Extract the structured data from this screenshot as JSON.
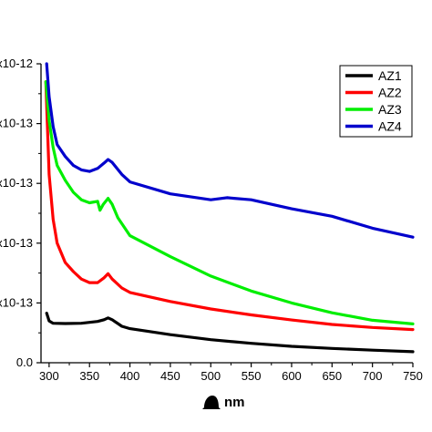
{
  "chart_data": {
    "type": "line",
    "xlabel": "nm",
    "xlim": [
      290,
      750
    ],
    "ylim": [
      0,
      1e-12
    ],
    "x_ticks": [
      300,
      350,
      400,
      450,
      500,
      550,
      600,
      650,
      700,
      750
    ],
    "y_ticks": [
      {
        "value": 0,
        "label": "0.0"
      },
      {
        "value": 2e-13,
        "label": "x10-13"
      },
      {
        "value": 4e-13,
        "label": "x10-13"
      },
      {
        "value": 6e-13,
        "label": "x10-13"
      },
      {
        "value": 8e-13,
        "label": "x10-13"
      },
      {
        "value": 1e-12,
        "label": "x10-12"
      }
    ],
    "legend_position": "top-right",
    "series": [
      {
        "name": "AZ1",
        "color": "#000000",
        "points": [
          [
            297,
            1.66e-13
          ],
          [
            300,
            1.4e-13
          ],
          [
            305,
            1.32e-13
          ],
          [
            320,
            1.31e-13
          ],
          [
            340,
            1.32e-13
          ],
          [
            360,
            1.38e-13
          ],
          [
            368,
            1.44e-13
          ],
          [
            373,
            1.5e-13
          ],
          [
            378,
            1.44e-13
          ],
          [
            390,
            1.22e-13
          ],
          [
            400,
            1.14e-13
          ],
          [
            450,
            9.4e-14
          ],
          [
            500,
            7.7e-14
          ],
          [
            550,
            6.5e-14
          ],
          [
            600,
            5.5e-14
          ],
          [
            650,
            4.8e-14
          ],
          [
            700,
            4.2e-14
          ],
          [
            750,
            3.7e-14
          ]
        ]
      },
      {
        "name": "AZ2",
        "color": "#ff0000",
        "points": [
          [
            296,
            9.4e-13
          ],
          [
            300,
            6.3e-13
          ],
          [
            305,
            4.8e-13
          ],
          [
            310,
            4e-13
          ],
          [
            320,
            3.35e-13
          ],
          [
            330,
            3.05e-13
          ],
          [
            340,
            2.8e-13
          ],
          [
            350,
            2.68e-13
          ],
          [
            360,
            2.68e-13
          ],
          [
            368,
            2.84e-13
          ],
          [
            373,
            2.98e-13
          ],
          [
            378,
            2.8e-13
          ],
          [
            390,
            2.5e-13
          ],
          [
            400,
            2.35e-13
          ],
          [
            450,
            2.05e-13
          ],
          [
            500,
            1.8e-13
          ],
          [
            550,
            1.6e-13
          ],
          [
            600,
            1.43e-13
          ],
          [
            650,
            1.28e-13
          ],
          [
            700,
            1.18e-13
          ],
          [
            750,
            1.11e-13
          ]
        ]
      },
      {
        "name": "AZ3",
        "color": "#00ee00",
        "points": [
          [
            296,
            9.4e-13
          ],
          [
            300,
            8.1e-13
          ],
          [
            305,
            7.2e-13
          ],
          [
            310,
            6.6e-13
          ],
          [
            320,
            6.1e-13
          ],
          [
            330,
            5.7e-13
          ],
          [
            340,
            5.45e-13
          ],
          [
            350,
            5.35e-13
          ],
          [
            360,
            5.4e-13
          ],
          [
            363,
            5.1e-13
          ],
          [
            367,
            5.3e-13
          ],
          [
            373,
            5.5e-13
          ],
          [
            378,
            5.3e-13
          ],
          [
            385,
            4.85e-13
          ],
          [
            400,
            4.25e-13
          ],
          [
            450,
            3.55e-13
          ],
          [
            500,
            2.9e-13
          ],
          [
            550,
            2.4e-13
          ],
          [
            600,
            2e-13
          ],
          [
            650,
            1.67e-13
          ],
          [
            700,
            1.42e-13
          ],
          [
            750,
            1.3e-13
          ]
        ]
      },
      {
        "name": "AZ4",
        "color": "#0000cc",
        "points": [
          [
            297,
            1e-12
          ],
          [
            300,
            8.9e-13
          ],
          [
            305,
            7.9e-13
          ],
          [
            310,
            7.3e-13
          ],
          [
            320,
            6.9e-13
          ],
          [
            330,
            6.6e-13
          ],
          [
            340,
            6.45e-13
          ],
          [
            350,
            6.4e-13
          ],
          [
            360,
            6.5e-13
          ],
          [
            368,
            6.68e-13
          ],
          [
            373,
            6.8e-13
          ],
          [
            378,
            6.7e-13
          ],
          [
            390,
            6.3e-13
          ],
          [
            400,
            6.05e-13
          ],
          [
            450,
            5.65e-13
          ],
          [
            500,
            5.45e-13
          ],
          [
            520,
            5.52e-13
          ],
          [
            550,
            5.45e-13
          ],
          [
            600,
            5.15e-13
          ],
          [
            650,
            4.9e-13
          ],
          [
            700,
            4.5e-13
          ],
          [
            750,
            4.2e-13
          ]
        ]
      }
    ]
  }
}
